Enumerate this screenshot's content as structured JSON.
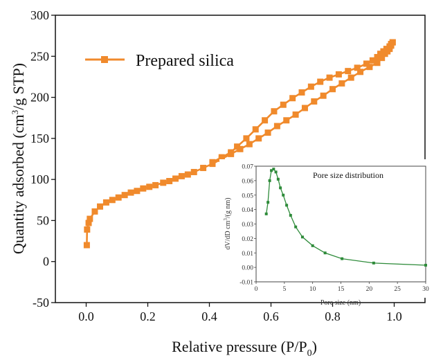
{
  "chart_data": [
    {
      "type": "line",
      "title": "",
      "xlabel": "Relative pressure (P/P",
      "xlabel_sub": "0",
      "xlabel_close": ")",
      "ylabel": "Quantity adsorbed (cm",
      "ylabel_sup": "3",
      "ylabel_close": "/g STP)",
      "xlim": [
        -0.1,
        1.1
      ],
      "ylim": [
        -50,
        300
      ],
      "xticks": [
        0.0,
        0.2,
        0.4,
        0.6,
        0.8,
        1.0
      ],
      "xtick_labels": [
        "0.0",
        "0.2",
        "0.4",
        "0.6",
        "0.8",
        "1.0"
      ],
      "yticks": [
        -50,
        0,
        50,
        100,
        150,
        200,
        250,
        300
      ],
      "ytick_labels": [
        "-50",
        "0",
        "50",
        "100",
        "150",
        "200",
        "250",
        "300"
      ],
      "grid": false,
      "legend_position": "top-left",
      "color": "#f08a2c",
      "series": [
        {
          "name": "Prepared silica",
          "x": [
            0.002,
            0.003,
            0.008,
            0.012,
            0.028,
            0.045,
            0.065,
            0.085,
            0.105,
            0.125,
            0.145,
            0.165,
            0.185,
            0.205,
            0.225,
            0.25,
            0.27,
            0.29,
            0.31,
            0.33,
            0.35,
            0.38,
            0.41,
            0.44,
            0.47,
            0.5,
            0.53,
            0.56,
            0.59,
            0.62,
            0.65,
            0.68,
            0.71,
            0.74,
            0.77,
            0.8,
            0.83,
            0.86,
            0.89,
            0.92,
            0.945,
            0.96,
            0.97,
            0.978,
            0.985,
            0.99,
            0.995
          ],
          "y": [
            20,
            39,
            47,
            52,
            61,
            67,
            72,
            75,
            78,
            81,
            84,
            86,
            89,
            91,
            93,
            96,
            98,
            101,
            104,
            106,
            109,
            114,
            119,
            125,
            131,
            137,
            143,
            150,
            157,
            165,
            172,
            179,
            187,
            195,
            202,
            210,
            217,
            224,
            231,
            237,
            242,
            248,
            253,
            256,
            259,
            263,
            267
          ],
          "desorption_x": [
            0.995,
            0.99,
            0.985,
            0.975,
            0.965,
            0.955,
            0.945,
            0.93,
            0.91,
            0.88,
            0.85,
            0.82,
            0.79,
            0.76,
            0.73,
            0.7,
            0.67,
            0.64,
            0.61,
            0.58,
            0.55,
            0.52,
            0.49,
            0.47,
            0.44,
            0.41
          ],
          "desorption_y": [
            267,
            265,
            262,
            259,
            256,
            253,
            249,
            245,
            241,
            236,
            232,
            228,
            224,
            219,
            213,
            206,
            199,
            191,
            183,
            172,
            161,
            150,
            140,
            133,
            127,
            121
          ]
        }
      ]
    },
    {
      "type": "line",
      "title": "Pore size distribution",
      "xlabel": "Pore size (nm)",
      "ylabel": "dV/dD cm",
      "ylabel_sup": "3",
      "ylabel_close": "/(g nm)",
      "xlim": [
        0,
        30
      ],
      "ylim": [
        -0.01,
        0.07
      ],
      "xticks": [
        0,
        5,
        10,
        15,
        20,
        25,
        30
      ],
      "xtick_labels": [
        "0",
        "5",
        "10",
        "15",
        "20",
        "25",
        "30"
      ],
      "yticks": [
        -0.01,
        0.0,
        0.01,
        0.02,
        0.03,
        0.04,
        0.05,
        0.06,
        0.07
      ],
      "ytick_labels": [
        "-0.01",
        "0.00",
        "0.01",
        "0.02",
        "0.03",
        "0.04",
        "0.05",
        "0.06",
        "0.07"
      ],
      "grid": false,
      "color": "#2e8b3a",
      "series": [
        {
          "x": [
            1.8,
            2.1,
            2.4,
            2.7,
            3.1,
            3.5,
            3.9,
            4.3,
            4.8,
            5.4,
            6.1,
            7.0,
            8.2,
            10.0,
            12.2,
            15.2,
            20.8,
            30.0
          ],
          "y": [
            0.037,
            0.045,
            0.06,
            0.067,
            0.068,
            0.066,
            0.061,
            0.055,
            0.05,
            0.043,
            0.036,
            0.028,
            0.021,
            0.015,
            0.01,
            0.006,
            0.003,
            0.0015
          ]
        }
      ]
    }
  ]
}
